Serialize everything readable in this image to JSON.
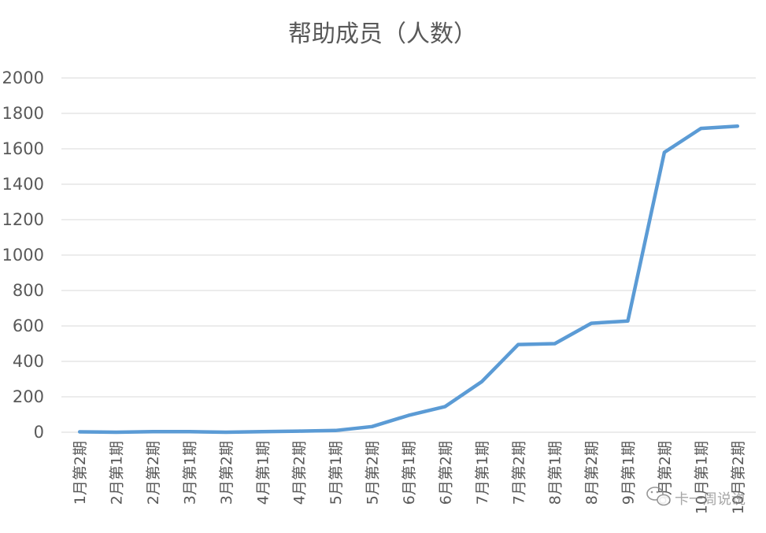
{
  "chart_data": {
    "type": "line",
    "title": "帮助成员（人数）",
    "xlabel": "",
    "ylabel": "",
    "ylim": [
      0,
      2000
    ],
    "yticks": [
      0,
      200,
      400,
      600,
      800,
      1000,
      1200,
      1400,
      1600,
      1800,
      2000
    ],
    "grid": true,
    "legend": "none",
    "categories": [
      "1月第2期",
      "2月第1期",
      "2月第2期",
      "3月第1期",
      "3月第2期",
      "4月第1期",
      "4月第2期",
      "5月第1期",
      "5月第2期",
      "6月第1期",
      "6月第2期",
      "7月第1期",
      "7月第2期",
      "8月第1期",
      "8月第2期",
      "9月第1期",
      "9月第2期",
      "10月第1期",
      "10月第2期"
    ],
    "series": [
      {
        "name": "",
        "color": "#5b9bd5",
        "values": [
          2,
          0,
          3,
          3,
          0,
          3,
          6,
          10,
          32,
          95,
          145,
          285,
          495,
          500,
          615,
          628,
          1580,
          1715,
          1728
        ]
      }
    ]
  },
  "watermark": {
    "text": "卡一周说说"
  },
  "colors": {
    "line": "#5b9bd5",
    "grid": "#d9d9d9",
    "text": "#595959"
  }
}
